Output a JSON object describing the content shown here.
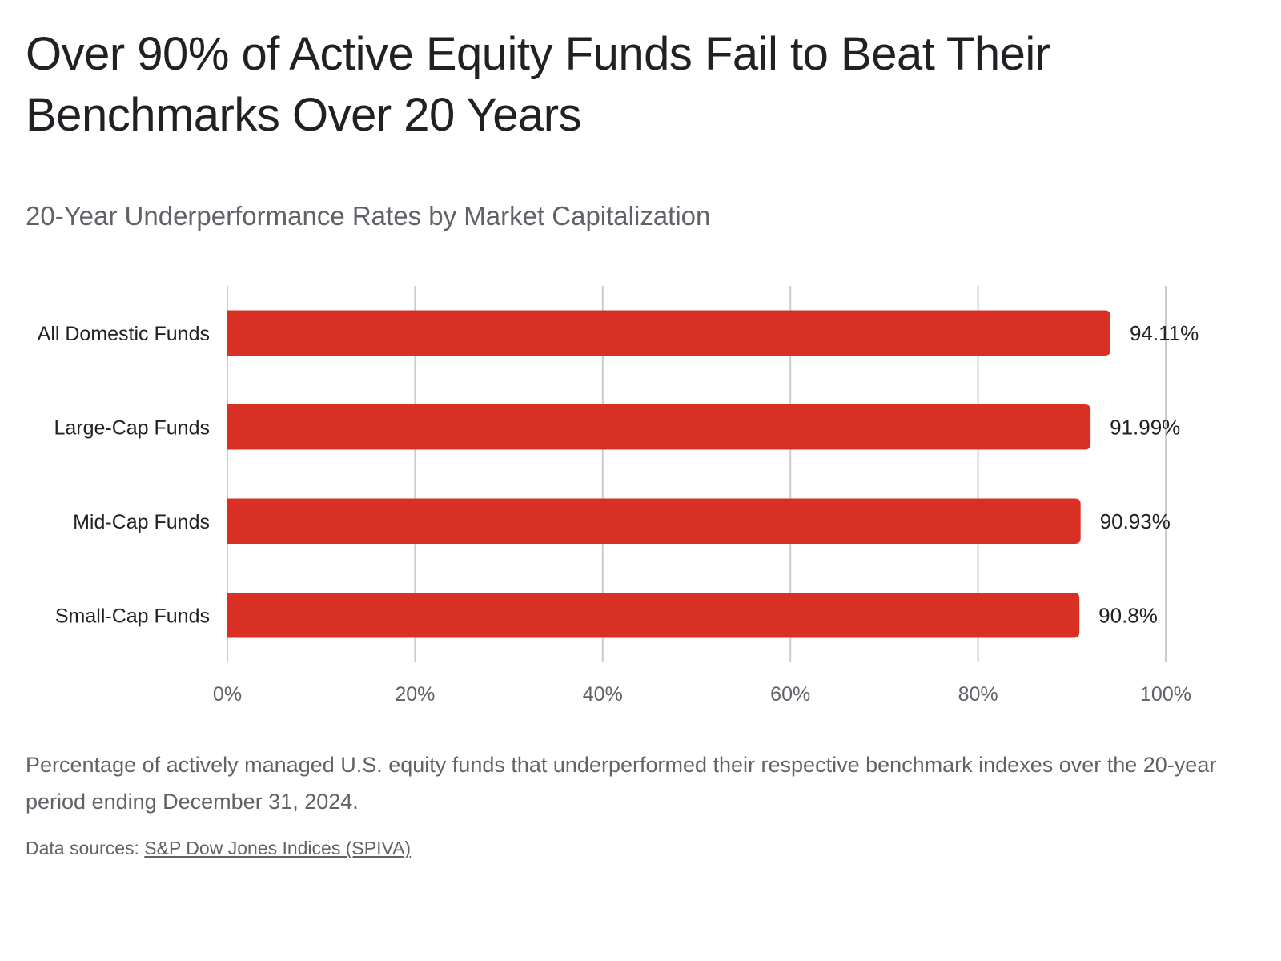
{
  "header": {
    "title": "Over 90% of Active Equity Funds Fail to Beat Their Benchmarks Over 20 Years",
    "subtitle": "20-Year Underperformance Rates by Market Capitalization"
  },
  "chart_data": {
    "type": "bar",
    "orientation": "horizontal",
    "categories": [
      "All Domestic Funds",
      "Large-Cap Funds",
      "Mid-Cap Funds",
      "Small-Cap Funds"
    ],
    "values": [
      94.11,
      91.99,
      90.93,
      90.8
    ],
    "value_labels": [
      "94.11%",
      "91.99%",
      "90.93%",
      "90.8%"
    ],
    "xlim": [
      0,
      100
    ],
    "x_ticks": [
      0,
      20,
      40,
      60,
      80,
      100
    ],
    "x_tick_labels": [
      "0%",
      "20%",
      "40%",
      "60%",
      "80%",
      "100%"
    ],
    "grid": true,
    "legend": "none",
    "bar_color": "#d93025",
    "grid_color": "#cccccc"
  },
  "footer": {
    "caption": "Percentage of actively managed U.S. equity funds that underperformed their respective benchmark indexes over the 20-year period ending December 31, 2024.",
    "sources_label": "Data sources:",
    "source_link": "S&P Dow Jones Indices (SPIVA)"
  }
}
